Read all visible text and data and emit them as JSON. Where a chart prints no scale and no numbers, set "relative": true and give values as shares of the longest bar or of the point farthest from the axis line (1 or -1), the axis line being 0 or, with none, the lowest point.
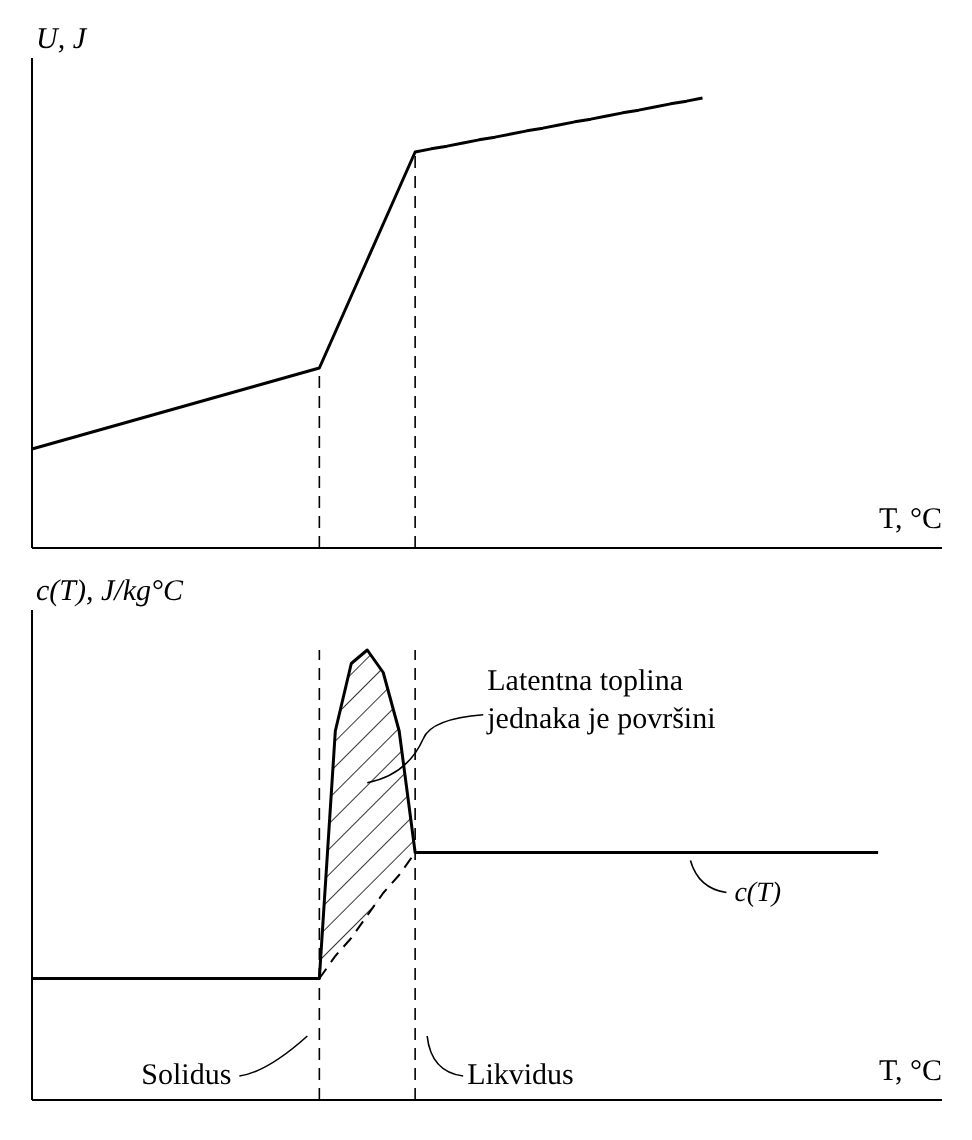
{
  "chart_data": [
    {
      "type": "line",
      "relative": true,
      "xlabel": "T, °C",
      "ylabel": "U, J",
      "categories": [
        null,
        null,
        null,
        null,
        null,
        null,
        null,
        null,
        null,
        null,
        null,
        null,
        null,
        null,
        null,
        null,
        null,
        null,
        null,
        null,
        null,
        null,
        null,
        null,
        null,
        null,
        null,
        null,
        null,
        null,
        null,
        null,
        null,
        null,
        null,
        null,
        null,
        null,
        null,
        null,
        null,
        null,
        null,
        null,
        null,
        null,
        null,
        null,
        null,
        null,
        null,
        null,
        null,
        null,
        null,
        null,
        null
      ],
      "series": [
        {
          "color": "#000000",
          "values": [
            0.22,
            0.23,
            0.24,
            0.25,
            0.26,
            0.27,
            0.28,
            0.29,
            0.3,
            0.31,
            0.32,
            0.33,
            0.34,
            0.35,
            0.36,
            0.37,
            0.38,
            0.39,
            0.4,
            0.48,
            0.56,
            0.64,
            0.72,
            0.8,
            0.88,
            0.887,
            0.893,
            0.9,
            0.907,
            0.913,
            0.92,
            0.927,
            0.933,
            0.94,
            0.947,
            0.953,
            0.96,
            0.967,
            0.973,
            0.98,
            0.987,
            0.993,
            1,
            null,
            null,
            null,
            null,
            null,
            null,
            null,
            null,
            null,
            null,
            null,
            null,
            null,
            null
          ]
        }
      ]
    },
    {
      "type": "line",
      "relative": true,
      "xlabel": "T, °C",
      "ylabel": "c(T), J/kg°C",
      "categories": [
        null,
        null,
        null,
        null,
        null,
        null,
        null,
        null,
        null,
        null,
        null,
        null,
        null,
        null,
        null,
        null,
        null,
        null,
        null,
        null,
        null,
        null,
        null,
        null,
        null,
        null,
        null,
        null,
        null,
        null,
        null,
        null,
        null,
        null,
        null,
        null,
        null,
        null,
        null,
        null,
        null,
        null,
        null,
        null,
        null,
        null,
        null,
        null,
        null,
        null,
        null,
        null,
        null,
        null,
        null,
        null,
        null
      ],
      "series": [
        {
          "name": "c(T)",
          "color": "#000000",
          "values": [
            0.27,
            0.27,
            0.27,
            0.27,
            0.27,
            0.27,
            0.27,
            0.27,
            0.27,
            0.27,
            0.27,
            0.27,
            0.27,
            0.27,
            0.27,
            0.27,
            0.27,
            0.27,
            0.27,
            0.82,
            0.97,
            1,
            0.95,
            0.82,
            0.55,
            0.55,
            0.55,
            0.55,
            0.55,
            0.55,
            0.55,
            0.55,
            0.55,
            0.55,
            0.55,
            0.55,
            0.55,
            0.55,
            0.55,
            0.55,
            0.55,
            0.55,
            0.55,
            0.55,
            0.55,
            0.55,
            0.55,
            0.55,
            0.55,
            0.55,
            0.55,
            0.55,
            0.55,
            0.55,
            null,
            null,
            null
          ]
        },
        {
          "color": "#000000",
          "line_style": "dashed",
          "values": [
            null,
            null,
            null,
            null,
            null,
            null,
            null,
            null,
            null,
            null,
            null,
            null,
            null,
            null,
            null,
            null,
            null,
            null,
            0.27,
            0.32,
            0.36,
            0.41,
            0.46,
            0.5,
            0.55,
            null,
            null,
            null,
            null,
            null,
            null,
            null,
            null,
            null,
            null,
            null,
            null,
            null,
            null,
            null,
            null,
            null,
            null,
            null,
            null,
            null,
            null,
            null,
            null,
            null,
            null,
            null,
            null,
            null,
            null,
            null,
            null
          ]
        },
        {
          "type": "area",
          "color": "#000000",
          "values": [
            null,
            null,
            null,
            null,
            null,
            null,
            null,
            null,
            null,
            null,
            null,
            null,
            null,
            null,
            null,
            null,
            null,
            null,
            0.27,
            0.82,
            0.97,
            1,
            0.95,
            0.82,
            0.55,
            null,
            null,
            null,
            null,
            null,
            null,
            null,
            null,
            null,
            null,
            null,
            null,
            null,
            null,
            null,
            null,
            null,
            null,
            null,
            null,
            null,
            null,
            null,
            null,
            null,
            null,
            null,
            null,
            null,
            null,
            null,
            null
          ]
        }
      ],
      "annotations": [
        "Latentna toplina jednaka je površini",
        "Solidus",
        "Likvidus"
      ]
    }
  ]
}
